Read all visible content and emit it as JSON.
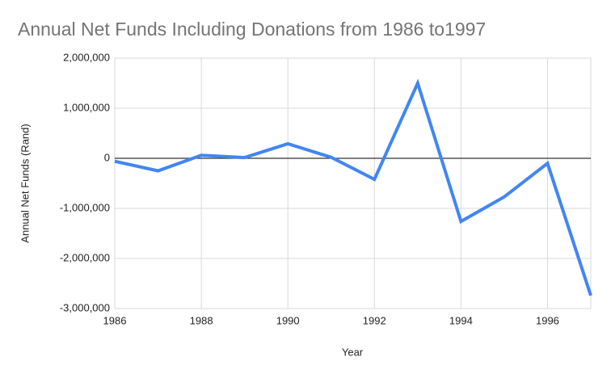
{
  "chart_data": {
    "type": "line",
    "title": "Annual Net Funds Including Donations from 1986 to1997",
    "x_label": "Year",
    "y_label": "Annual Net Funds (Rand)",
    "x": [
      1986,
      1987,
      1988,
      1989,
      1990,
      1991,
      1992,
      1993,
      1994,
      1995,
      1996,
      1997
    ],
    "series": [
      {
        "name": "Annual Net Funds (Rand)",
        "color": "#4285f4",
        "values": [
          -60000,
          -250000,
          60000,
          15000,
          290000,
          20000,
          -420000,
          1500000,
          -1260000,
          -770000,
          -100000,
          -2740000
        ]
      }
    ],
    "xlim": [
      1986,
      1997
    ],
    "xticks": [
      1986,
      1988,
      1990,
      1992,
      1994,
      1996
    ],
    "ylim": [
      -3000000,
      2000000
    ],
    "yticks": [
      {
        "value": -3000000,
        "label": "-3,000,000"
      },
      {
        "value": -2000000,
        "label": "-2,000,000"
      },
      {
        "value": -1000000,
        "label": "-1,000,000"
      },
      0,
      {
        "value": 1000000,
        "label": "1,000,000"
      },
      {
        "value": 2000000,
        "label": "2,000,000"
      }
    ],
    "grid": true
  }
}
